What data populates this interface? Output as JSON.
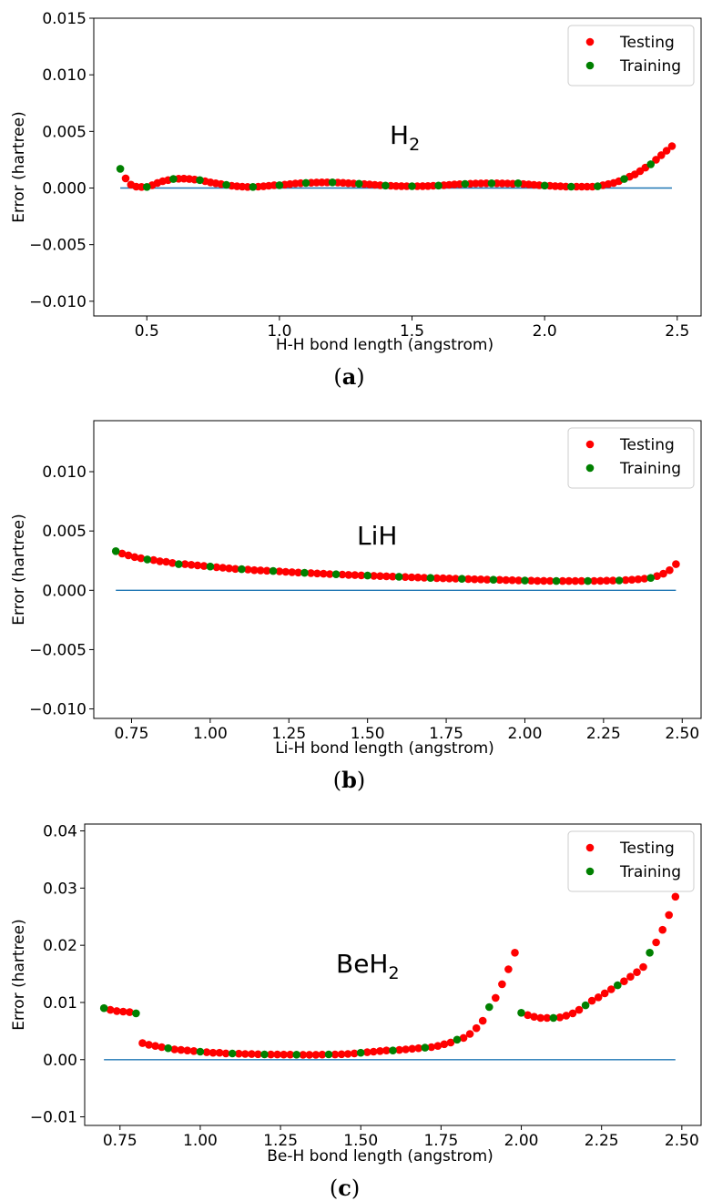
{
  "chart_data": [
    {
      "type": "scatter",
      "panel_label": "a",
      "annotation": "H",
      "annotation_sub": "2",
      "xlabel": "H-H bond length (angstrom)",
      "ylabel": "Error (hartree)",
      "xlim": [
        0.3,
        2.59
      ],
      "ylim": [
        -0.0113,
        0.015
      ],
      "xticks": [
        0.5,
        1.0,
        1.5,
        2.0,
        2.5
      ],
      "xtick_labels": [
        "0.5",
        "1.0",
        "1.5",
        "2.0",
        "2.5"
      ],
      "yticks": [
        -0.01,
        -0.005,
        0.0,
        0.005,
        0.01,
        0.015
      ],
      "ytick_labels": [
        "−0.010",
        "−0.005",
        "0.000",
        "0.005",
        "0.010",
        "0.015"
      ],
      "legend": {
        "position": "top-right",
        "entries": [
          "Testing",
          "Training"
        ]
      },
      "reference_line": {
        "x": [
          0.4,
          2.48
        ],
        "y": 0
      },
      "series": [
        {
          "name": "Testing",
          "color": "#ff0000",
          "x": [
            0.42,
            0.44,
            0.46,
            0.48,
            0.52,
            0.54,
            0.56,
            0.58,
            0.62,
            0.64,
            0.66,
            0.68,
            0.72,
            0.74,
            0.76,
            0.78,
            0.82,
            0.84,
            0.86,
            0.88,
            0.92,
            0.94,
            0.96,
            0.98,
            1.02,
            1.04,
            1.06,
            1.08,
            1.12,
            1.14,
            1.16,
            1.18,
            1.22,
            1.24,
            1.26,
            1.28,
            1.32,
            1.34,
            1.36,
            1.38,
            1.42,
            1.44,
            1.46,
            1.48,
            1.52,
            1.54,
            1.56,
            1.58,
            1.62,
            1.64,
            1.66,
            1.68,
            1.72,
            1.74,
            1.76,
            1.78,
            1.82,
            1.84,
            1.86,
            1.88,
            1.92,
            1.94,
            1.96,
            1.98,
            2.02,
            2.04,
            2.06,
            2.08,
            2.12,
            2.14,
            2.16,
            2.18,
            2.22,
            2.24,
            2.26,
            2.28,
            2.32,
            2.34,
            2.36,
            2.38,
            2.42,
            2.44,
            2.46,
            2.48
          ],
          "y": [
            0.00085,
            0.0003,
            0.00012,
            0.0001,
            0.00025,
            0.00045,
            0.0006,
            0.0007,
            0.00082,
            0.00083,
            0.0008,
            0.00075,
            0.0006,
            0.0005,
            0.00042,
            0.00035,
            0.0002,
            0.00015,
            0.00012,
            0.0001,
            0.00012,
            0.00015,
            0.0002,
            0.00025,
            0.0003,
            0.00035,
            0.0004,
            0.00043,
            0.00047,
            0.00049,
            0.0005,
            0.0005,
            0.00048,
            0.00046,
            0.00043,
            0.0004,
            0.00035,
            0.00031,
            0.00028,
            0.00025,
            0.0002,
            0.00018,
            0.00017,
            0.00016,
            0.00016,
            0.00017,
            0.00018,
            0.0002,
            0.00025,
            0.00028,
            0.00031,
            0.00034,
            0.00038,
            0.0004,
            0.00041,
            0.00042,
            0.00042,
            0.00041,
            0.0004,
            0.00038,
            0.00035,
            0.00031,
            0.00028,
            0.00025,
            0.0002,
            0.00017,
            0.00015,
            0.00013,
            0.00012,
            0.00012,
            0.00012,
            0.00012,
            0.00025,
            0.00035,
            0.00045,
            0.0006,
            0.001,
            0.0012,
            0.0015,
            0.0018,
            0.0025,
            0.0029,
            0.0033,
            0.0037
          ]
        },
        {
          "name": "Training",
          "color": "#008000",
          "x": [
            0.4,
            0.5,
            0.6,
            0.7,
            0.8,
            0.9,
            1.0,
            1.1,
            1.2,
            1.3,
            1.4,
            1.5,
            1.6,
            1.7,
            1.8,
            1.9,
            2.0,
            2.1,
            2.2,
            2.3,
            2.4
          ],
          "y": [
            0.0017,
            0.0001,
            0.0008,
            0.0007,
            0.00028,
            0.0001,
            0.00025,
            0.00045,
            0.0005,
            0.00038,
            0.00022,
            0.00016,
            0.00022,
            0.00036,
            0.00042,
            0.00042,
            0.00022,
            0.00012,
            0.00015,
            0.0008,
            0.0021
          ]
        }
      ]
    },
    {
      "type": "scatter",
      "panel_label": "b",
      "annotation": "LiH",
      "annotation_sub": "",
      "xlabel": "Li-H bond length (angstrom)",
      "ylabel": "Error (hartree)",
      "xlim": [
        0.63,
        2.56
      ],
      "ylim": [
        -0.0108,
        0.0143
      ],
      "xticks": [
        0.75,
        1.0,
        1.25,
        1.5,
        1.75,
        2.0,
        2.25,
        2.5
      ],
      "xtick_labels": [
        "0.75",
        "1.00",
        "1.25",
        "1.50",
        "1.75",
        "2.00",
        "2.25",
        "2.50"
      ],
      "yticks": [
        -0.01,
        -0.005,
        0.0,
        0.005,
        0.01
      ],
      "ytick_labels": [
        "−0.010",
        "−0.005",
        "0.000",
        "0.005",
        "0.010"
      ],
      "legend": {
        "position": "top-right",
        "entries": [
          "Testing",
          "Training"
        ]
      },
      "reference_line": {
        "x": [
          0.7,
          2.48
        ],
        "y": 0
      },
      "series": [
        {
          "name": "Testing",
          "color": "#ff0000",
          "x": [
            0.72,
            0.74,
            0.76,
            0.78,
            0.82,
            0.84,
            0.86,
            0.88,
            0.92,
            0.94,
            0.96,
            0.98,
            1.02,
            1.04,
            1.06,
            1.08,
            1.12,
            1.14,
            1.16,
            1.18,
            1.22,
            1.24,
            1.26,
            1.28,
            1.32,
            1.34,
            1.36,
            1.38,
            1.42,
            1.44,
            1.46,
            1.48,
            1.52,
            1.54,
            1.56,
            1.58,
            1.62,
            1.64,
            1.66,
            1.68,
            1.72,
            1.74,
            1.76,
            1.78,
            1.82,
            1.84,
            1.86,
            1.88,
            1.92,
            1.94,
            1.96,
            1.98,
            2.02,
            2.04,
            2.06,
            2.08,
            2.12,
            2.14,
            2.16,
            2.18,
            2.22,
            2.24,
            2.26,
            2.28,
            2.32,
            2.34,
            2.36,
            2.38,
            2.42,
            2.44,
            2.46,
            2.48
          ],
          "y": [
            0.0031,
            0.00295,
            0.0028,
            0.0027,
            0.00255,
            0.00245,
            0.0024,
            0.0023,
            0.0022,
            0.00215,
            0.0021,
            0.00205,
            0.00195,
            0.0019,
            0.00185,
            0.0018,
            0.00175,
            0.0017,
            0.00168,
            0.00165,
            0.0016,
            0.00156,
            0.00153,
            0.0015,
            0.00145,
            0.00142,
            0.0014,
            0.00137,
            0.00133,
            0.0013,
            0.00128,
            0.00126,
            0.00122,
            0.0012,
            0.00118,
            0.00116,
            0.00112,
            0.0011,
            0.00108,
            0.00106,
            0.00103,
            0.00101,
            0.001,
            0.00098,
            0.00095,
            0.00093,
            0.00092,
            0.0009,
            0.00088,
            0.00086,
            0.00085,
            0.00084,
            0.00081,
            0.0008,
            0.0008,
            0.00079,
            0.00078,
            0.00078,
            0.00078,
            0.00078,
            0.00079,
            0.0008,
            0.00081,
            0.00082,
            0.00086,
            0.00089,
            0.00093,
            0.00098,
            0.0012,
            0.0014,
            0.0017,
            0.0022
          ]
        },
        {
          "name": "Training",
          "color": "#008000",
          "x": [
            0.7,
            0.8,
            0.9,
            1.0,
            1.1,
            1.2,
            1.3,
            1.4,
            1.5,
            1.6,
            1.7,
            1.8,
            1.9,
            2.0,
            2.1,
            2.2,
            2.3,
            2.4
          ],
          "y": [
            0.0033,
            0.0026,
            0.0022,
            0.002,
            0.00178,
            0.00163,
            0.00147,
            0.00135,
            0.00124,
            0.00114,
            0.00104,
            0.00097,
            0.00089,
            0.00082,
            0.00078,
            0.00078,
            0.00083,
            0.00104
          ]
        }
      ]
    },
    {
      "type": "scatter",
      "panel_label": "c",
      "annotation": "BeH",
      "annotation_sub": "2",
      "xlabel": "Be-H bond length (angstrom)",
      "ylabel": "Error (hartree)",
      "xlim": [
        0.64,
        2.56
      ],
      "ylim": [
        -0.0115,
        0.0412
      ],
      "xticks": [
        0.75,
        1.0,
        1.25,
        1.5,
        1.75,
        2.0,
        2.25,
        2.5
      ],
      "xtick_labels": [
        "0.75",
        "1.00",
        "1.25",
        "1.50",
        "1.75",
        "2.00",
        "2.25",
        "2.50"
      ],
      "yticks": [
        -0.01,
        0.0,
        0.01,
        0.02,
        0.03,
        0.04
      ],
      "ytick_labels": [
        "−0.01",
        "0.00",
        "0.01",
        "0.02",
        "0.03",
        "0.04"
      ],
      "legend": {
        "position": "top-right",
        "entries": [
          "Testing",
          "Training"
        ]
      },
      "reference_line": {
        "x": [
          0.7,
          2.48
        ],
        "y": 0
      },
      "series": [
        {
          "name": "Testing",
          "color": "#ff0000",
          "x": [
            0.72,
            0.74,
            0.76,
            0.78,
            0.82,
            0.84,
            0.86,
            0.88,
            0.92,
            0.94,
            0.96,
            0.98,
            1.02,
            1.04,
            1.06,
            1.08,
            1.12,
            1.14,
            1.16,
            1.18,
            1.22,
            1.24,
            1.26,
            1.28,
            1.32,
            1.34,
            1.36,
            1.38,
            1.42,
            1.44,
            1.46,
            1.48,
            1.52,
            1.54,
            1.56,
            1.58,
            1.62,
            1.64,
            1.66,
            1.68,
            1.72,
            1.74,
            1.76,
            1.78,
            1.82,
            1.84,
            1.86,
            1.88,
            1.92,
            1.94,
            1.96,
            1.98,
            2.02,
            2.04,
            2.06,
            2.08,
            2.12,
            2.14,
            2.16,
            2.18,
            2.22,
            2.24,
            2.26,
            2.28,
            2.32,
            2.34,
            2.36,
            2.38,
            2.42,
            2.44,
            2.46,
            2.48
          ],
          "y": [
            0.0087,
            0.0085,
            0.0084,
            0.0083,
            0.0029,
            0.0026,
            0.0024,
            0.0022,
            0.0018,
            0.0017,
            0.0016,
            0.0015,
            0.0013,
            0.0012,
            0.0012,
            0.0011,
            0.00105,
            0.001,
            0.00098,
            0.00095,
            0.0009,
            0.0009,
            0.00088,
            0.00088,
            0.00086,
            0.00086,
            0.00086,
            0.00088,
            0.0009,
            0.00095,
            0.001,
            0.0011,
            0.0013,
            0.0014,
            0.0015,
            0.0016,
            0.0017,
            0.0018,
            0.0019,
            0.002,
            0.0022,
            0.0024,
            0.0027,
            0.003,
            0.0038,
            0.0045,
            0.0055,
            0.0068,
            0.0108,
            0.0132,
            0.0158,
            0.0187,
            0.0078,
            0.0075,
            0.0073,
            0.0073,
            0.0074,
            0.0077,
            0.0081,
            0.0087,
            0.0103,
            0.0109,
            0.0116,
            0.0123,
            0.0137,
            0.0145,
            0.0153,
            0.0162,
            0.0205,
            0.0227,
            0.0253,
            0.0285
          ]
        },
        {
          "name": "Training",
          "color": "#008000",
          "x": [
            0.7,
            0.8,
            0.9,
            1.0,
            1.1,
            1.2,
            1.3,
            1.4,
            1.5,
            1.6,
            1.7,
            1.8,
            1.9,
            2.0,
            2.1,
            2.2,
            2.3,
            2.4
          ],
          "y": [
            0.009,
            0.0081,
            0.002,
            0.0014,
            0.00108,
            0.00092,
            0.00087,
            0.00092,
            0.0012,
            0.0016,
            0.0021,
            0.0035,
            0.0092,
            0.0082,
            0.0073,
            0.0095,
            0.013,
            0.0187
          ]
        }
      ]
    }
  ]
}
